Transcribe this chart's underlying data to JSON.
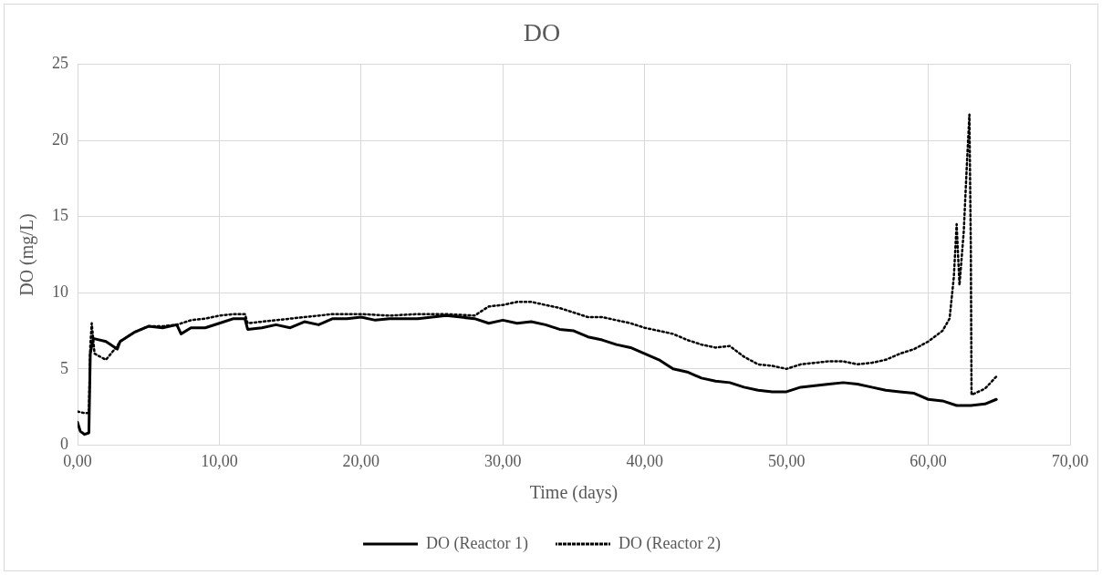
{
  "chart_data": {
    "type": "line",
    "title": "DO",
    "xlabel": "Time (days)",
    "ylabel": "DO (mg/L)",
    "xlim": [
      0,
      70
    ],
    "xticks": [
      {
        "value": 0,
        "label": "0,00"
      },
      {
        "value": 10,
        "label": "10,00"
      },
      {
        "value": 20,
        "label": "20,00"
      },
      {
        "value": 30,
        "label": "30,00"
      },
      {
        "value": 40,
        "label": "40,00"
      },
      {
        "value": 50,
        "label": "50,00"
      },
      {
        "value": 60,
        "label": "60,00"
      },
      {
        "value": 70,
        "label": "70,00"
      }
    ],
    "ylim": [
      0,
      25
    ],
    "yticks": [
      0,
      5,
      10,
      15,
      20,
      25
    ],
    "grid": true,
    "legend": "bottom",
    "marker": "none",
    "series": [
      {
        "name": "DO (Reactor 1)",
        "color": "#000000",
        "line_style": "solid",
        "x": [
          0,
          0.2,
          0.5,
          0.8,
          0.9,
          1.1,
          2,
          2.8,
          3,
          4,
          5,
          6,
          7,
          7.3,
          8,
          9,
          10,
          11,
          11.8,
          12,
          13,
          14,
          15,
          16,
          17,
          18,
          19,
          20,
          21,
          22,
          24,
          26,
          28,
          29,
          30,
          31,
          32,
          33,
          34,
          35,
          36,
          37,
          38,
          39,
          40,
          41,
          42,
          43,
          44,
          45,
          46,
          47,
          48,
          49,
          50,
          51,
          52,
          53,
          54,
          55,
          56,
          57,
          58,
          59,
          60,
          61,
          62,
          63,
          64,
          64.8
        ],
        "values": [
          1.5,
          0.9,
          0.7,
          0.8,
          6.0,
          7.0,
          6.8,
          6.3,
          6.8,
          7.4,
          7.8,
          7.7,
          7.9,
          7.3,
          7.7,
          7.7,
          8.0,
          8.3,
          8.3,
          7.6,
          7.7,
          7.9,
          7.7,
          8.1,
          7.9,
          8.3,
          8.3,
          8.4,
          8.2,
          8.3,
          8.3,
          8.5,
          8.3,
          8.0,
          8.2,
          8.0,
          8.1,
          7.9,
          7.6,
          7.5,
          7.1,
          6.9,
          6.6,
          6.4,
          6.0,
          5.6,
          5.0,
          4.8,
          4.4,
          4.2,
          4.1,
          3.8,
          3.6,
          3.5,
          3.5,
          3.8,
          3.9,
          4.0,
          4.1,
          4.0,
          3.8,
          3.6,
          3.5,
          3.4,
          3.0,
          2.9,
          2.6,
          2.6,
          2.7,
          3.0
        ]
      },
      {
        "name": "DO (Reactor 2)",
        "color": "#000000",
        "line_style": "dotted",
        "x": [
          0,
          0.5,
          0.8,
          0.9,
          1.0,
          1.2,
          2,
          2.8,
          3,
          4,
          5,
          6,
          7,
          8,
          9,
          10,
          11,
          11.8,
          12,
          14,
          16,
          18,
          20,
          22,
          24,
          26,
          28,
          29,
          30,
          31,
          32,
          33,
          34,
          35,
          36,
          37,
          38,
          39,
          40,
          41,
          42,
          43,
          44,
          45,
          46,
          47,
          48,
          49,
          50,
          51,
          52,
          53,
          54,
          55,
          56,
          57,
          58,
          59,
          60,
          61,
          61.5,
          61.8,
          62,
          62.2,
          62.5,
          62.7,
          62.9,
          63.0,
          63.05,
          64,
          64.8
        ],
        "values": [
          2.2,
          2.1,
          2.1,
          6.5,
          8.0,
          6.0,
          5.6,
          6.5,
          6.8,
          7.4,
          7.8,
          7.8,
          7.9,
          8.2,
          8.3,
          8.5,
          8.6,
          8.6,
          8.0,
          8.2,
          8.4,
          8.6,
          8.6,
          8.5,
          8.6,
          8.6,
          8.5,
          9.1,
          9.2,
          9.4,
          9.4,
          9.2,
          9.0,
          8.7,
          8.4,
          8.4,
          8.2,
          8.0,
          7.7,
          7.5,
          7.3,
          6.9,
          6.6,
          6.4,
          6.5,
          5.8,
          5.3,
          5.2,
          5.0,
          5.3,
          5.4,
          5.5,
          5.5,
          5.3,
          5.4,
          5.6,
          6.0,
          6.3,
          6.8,
          7.5,
          8.3,
          11,
          14.5,
          10.5,
          14,
          18,
          21.7,
          13,
          3.3,
          3.7,
          4.5
        ]
      }
    ]
  }
}
